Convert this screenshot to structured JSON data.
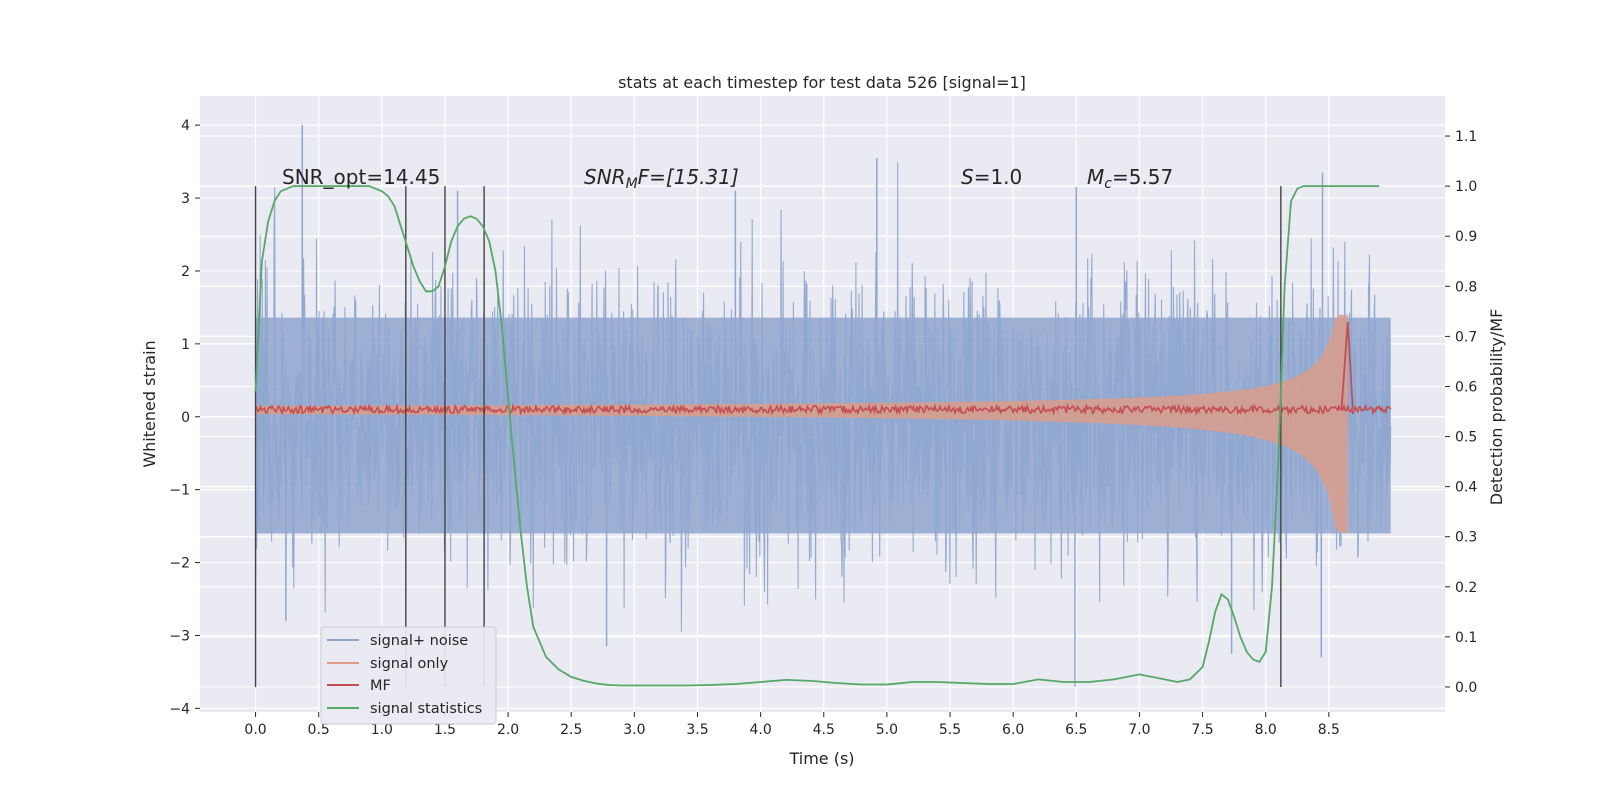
{
  "chart_data": {
    "type": "line",
    "title": "stats at each timestep for test data 526 [signal=1]",
    "xlabel": "Time (s)",
    "ylabel": "Whitened strain",
    "ylabel_right": "Detection probability/MF",
    "xlim": [
      -0.44,
      9.42
    ],
    "ylim": [
      -4.05,
      4.4
    ],
    "ylim_right": [
      -0.05,
      1.18
    ],
    "x_ticks": [
      "0.0",
      "0.5",
      "1.0",
      "1.5",
      "2.0",
      "2.5",
      "3.0",
      "3.5",
      "4.0",
      "4.5",
      "5.0",
      "5.5",
      "6.0",
      "6.5",
      "7.0",
      "7.5",
      "8.0",
      "8.5"
    ],
    "y_ticks": [
      "4",
      "3",
      "2",
      "1",
      "0",
      "−1",
      "−2",
      "−3",
      "−4"
    ],
    "y_ticks_right": [
      "1.1",
      "1.0",
      "0.9",
      "0.8",
      "0.7",
      "0.6",
      "0.5",
      "0.4",
      "0.3",
      "0.2",
      "0.1",
      "0.0"
    ],
    "grid": true,
    "annotations": {
      "snr_opt": "SNR_opt=14.45",
      "snr_mf_name": "SNR",
      "snr_mf_sub": "M",
      "snr_mf_rest": "F=[15.31]",
      "s_name": "S",
      "s_value": "=1.0",
      "mc_name": "M",
      "mc_sub": "c",
      "mc_value": "=5.57"
    },
    "vertical_markers": [
      0.0,
      1.19,
      1.5,
      1.81,
      8.12
    ],
    "series": [
      {
        "name": "signal+ noise",
        "color": "#8fa6cf",
        "envelope": {
          "x_range": [
            0.0,
            8.99
          ],
          "typical_amplitude": 2.0,
          "peak_max": 4.0,
          "peak_min": -3.7
        }
      },
      {
        "name": "signal only",
        "color": "#dd9c86",
        "chirp": {
          "t_start": 0.0,
          "t_merger": 8.65,
          "amplitude_start": 0.05,
          "amplitude_peak": 1.3
        }
      },
      {
        "name": "MF",
        "color": "#c44e52",
        "baseline": 0.1,
        "jitter": 0.1,
        "peak": {
          "x": 8.65,
          "y": 1.3
        }
      },
      {
        "name": "signal statistics",
        "color": "#55a868",
        "axis": "right",
        "x": [
          0.0,
          0.05,
          0.1,
          0.15,
          0.2,
          0.3,
          0.4,
          0.5,
          0.6,
          0.7,
          0.8,
          0.9,
          1.0,
          1.05,
          1.1,
          1.15,
          1.2,
          1.25,
          1.3,
          1.35,
          1.4,
          1.45,
          1.5,
          1.55,
          1.6,
          1.65,
          1.7,
          1.75,
          1.8,
          1.85,
          1.9,
          1.95,
          2.0,
          2.05,
          2.1,
          2.15,
          2.2,
          2.3,
          2.4,
          2.5,
          2.6,
          2.7,
          2.8,
          2.9,
          3.0,
          3.2,
          3.4,
          3.6,
          3.8,
          4.0,
          4.2,
          4.4,
          4.6,
          4.8,
          5.0,
          5.2,
          5.4,
          5.6,
          5.8,
          6.0,
          6.2,
          6.4,
          6.6,
          6.8,
          7.0,
          7.2,
          7.3,
          7.4,
          7.5,
          7.55,
          7.6,
          7.65,
          7.7,
          7.75,
          7.8,
          7.85,
          7.9,
          7.95,
          8.0,
          8.05,
          8.1,
          8.15,
          8.2,
          8.25,
          8.3,
          8.5,
          8.7,
          8.9
        ],
        "y": [
          0.59,
          0.85,
          0.93,
          0.97,
          0.99,
          1.0,
          1.0,
          1.0,
          1.0,
          1.0,
          1.0,
          1.0,
          0.99,
          0.98,
          0.96,
          0.92,
          0.88,
          0.84,
          0.81,
          0.79,
          0.79,
          0.8,
          0.84,
          0.89,
          0.92,
          0.935,
          0.94,
          0.935,
          0.92,
          0.89,
          0.83,
          0.72,
          0.58,
          0.44,
          0.31,
          0.2,
          0.12,
          0.06,
          0.035,
          0.02,
          0.012,
          0.007,
          0.004,
          0.003,
          0.003,
          0.003,
          0.003,
          0.004,
          0.006,
          0.01,
          0.014,
          0.012,
          0.008,
          0.005,
          0.005,
          0.01,
          0.01,
          0.008,
          0.006,
          0.006,
          0.015,
          0.01,
          0.01,
          0.015,
          0.025,
          0.015,
          0.01,
          0.015,
          0.04,
          0.09,
          0.15,
          0.185,
          0.175,
          0.14,
          0.1,
          0.07,
          0.055,
          0.05,
          0.07,
          0.2,
          0.45,
          0.8,
          0.97,
          0.995,
          1.0,
          1.0,
          1.0,
          1.0
        ]
      }
    ],
    "legend": {
      "placement": "lower-left",
      "entries": [
        "signal+ noise",
        "signal only",
        "MF",
        "signal statistics"
      ]
    }
  },
  "colors": {
    "plot_bg": "#eaeaf2",
    "grid": "#ffffff",
    "noise": "#8fa6cf",
    "signal": "#dd9c86",
    "mf": "#c44e52",
    "stats": "#55a868",
    "marker": "#444444"
  }
}
